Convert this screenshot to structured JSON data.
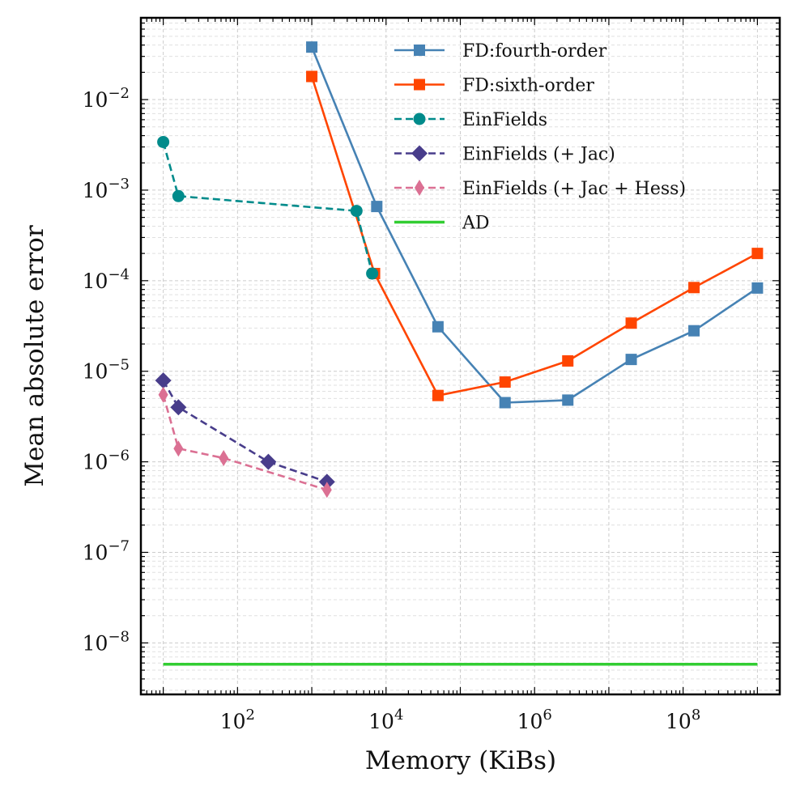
{
  "chart_data": {
    "type": "line",
    "xscale": "log",
    "yscale": "log",
    "xlabel": "Memory (KiBs)",
    "ylabel": "Mean absolute error",
    "xlim": [
      5,
      2000000000.0
    ],
    "ylim": [
      2.7e-09,
      0.08
    ],
    "grid": true,
    "legend_position": "top-right",
    "x_ticks": [
      {
        "value": 100,
        "base": "10",
        "exp": "2"
      },
      {
        "value": 10000,
        "base": "10",
        "exp": "4"
      },
      {
        "value": 1000000,
        "base": "10",
        "exp": "6"
      },
      {
        "value": 100000000,
        "base": "10",
        "exp": "8"
      }
    ],
    "y_ticks": [
      {
        "value": 0.01,
        "base": "10",
        "exp": "−2"
      },
      {
        "value": 0.001,
        "base": "10",
        "exp": "−3"
      },
      {
        "value": 0.0001,
        "base": "10",
        "exp": "−4"
      },
      {
        "value": 1e-05,
        "base": "10",
        "exp": "−5"
      },
      {
        "value": 1e-06,
        "base": "10",
        "exp": "−6"
      },
      {
        "value": 1e-07,
        "base": "10",
        "exp": "−7"
      },
      {
        "value": 1e-08,
        "base": "10",
        "exp": "−8"
      }
    ],
    "series": [
      {
        "name": "FD:fourth-order",
        "color": "#4682b4",
        "marker": "square",
        "dash": "solid",
        "x": [
          1000,
          7500,
          50000,
          400000,
          2800000,
          20000000,
          140000000,
          1000000000
        ],
        "y": [
          0.038,
          0.00066,
          3.1e-05,
          4.5e-06,
          4.8e-06,
          1.35e-05,
          2.8e-05,
          8.3e-05
        ]
      },
      {
        "name": "FD:sixth-order",
        "color": "#ff4500",
        "marker": "square",
        "dash": "solid",
        "x": [
          1000,
          7000,
          50000,
          400000,
          2800000,
          20000000,
          140000000,
          1000000000
        ],
        "y": [
          0.018,
          0.00012,
          5.4e-06,
          7.6e-06,
          1.3e-05,
          3.4e-05,
          8.4e-05,
          0.0002
        ]
      },
      {
        "name": "EinFields",
        "color": "#008b8b",
        "marker": "circle",
        "dash": "dashed",
        "x": [
          10,
          16,
          4000,
          6500
        ],
        "y": [
          0.0034,
          0.00086,
          0.00059,
          0.00012
        ]
      },
      {
        "name": "EinFields (+ Jac)",
        "color": "#483d8b",
        "marker": "diamond",
        "dash": "dashed",
        "x": [
          10,
          16,
          260,
          1600
        ],
        "y": [
          7.9e-06,
          4e-06,
          1e-06,
          6e-07
        ]
      },
      {
        "name": "EinFields (+ Jac + Hess)",
        "color": "#db7093",
        "marker": "thin_diamond",
        "dash": "dashed",
        "x": [
          10,
          16,
          65,
          1600
        ],
        "y": [
          5.5e-06,
          1.4e-06,
          1.1e-06,
          4.9e-07
        ]
      },
      {
        "name": "AD",
        "color": "#32cd32",
        "marker": "none",
        "dash": "solid",
        "x": [
          10,
          1000000000
        ],
        "y": [
          5.8e-09,
          5.8e-09
        ]
      }
    ]
  }
}
